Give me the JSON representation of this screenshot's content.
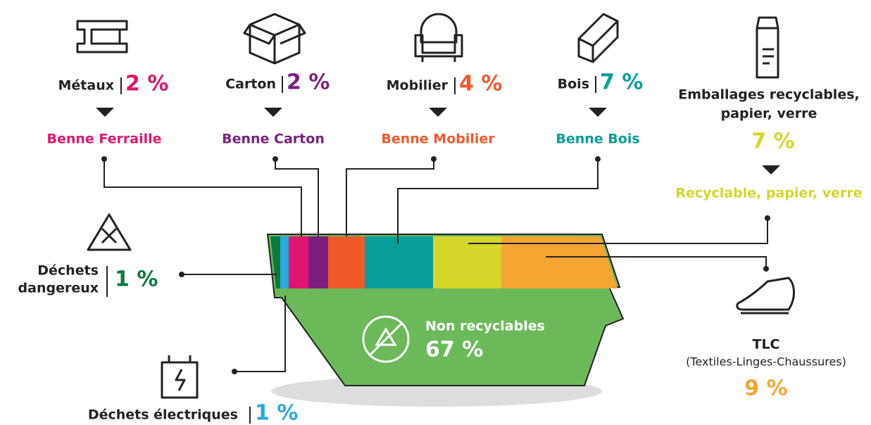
{
  "items": [
    {
      "label": "Métaux",
      "percent": "2 %",
      "destination": "Benne Ferraille"
    },
    {
      "label": "Carton",
      "percent": "2 %",
      "destination": "Benne Carton"
    },
    {
      "label": "Mobilier",
      "percent": "4 %",
      "destination": "Benne Mobilier"
    },
    {
      "label": "Bois",
      "percent": "7 %",
      "destination": "Benne Bois"
    }
  ],
  "packaging": {
    "label_lines": [
      "Emballages recyclables,",
      "papier, verre"
    ],
    "percent": "7 %",
    "destination": "Recyclable, papier, verre"
  },
  "hazardous": {
    "label_lines": [
      "Déchets",
      "dangereux"
    ],
    "percent": "1 %"
  },
  "electrical": {
    "label": "Déchets électriques",
    "percent": "1 %"
  },
  "textiles": {
    "label": "TLC",
    "detail": "(Textiles-Linges-Chaussures)",
    "percent": "9 %"
  },
  "non_recyclable": {
    "label": "Non recyclables",
    "percent": "67 %"
  }
}
